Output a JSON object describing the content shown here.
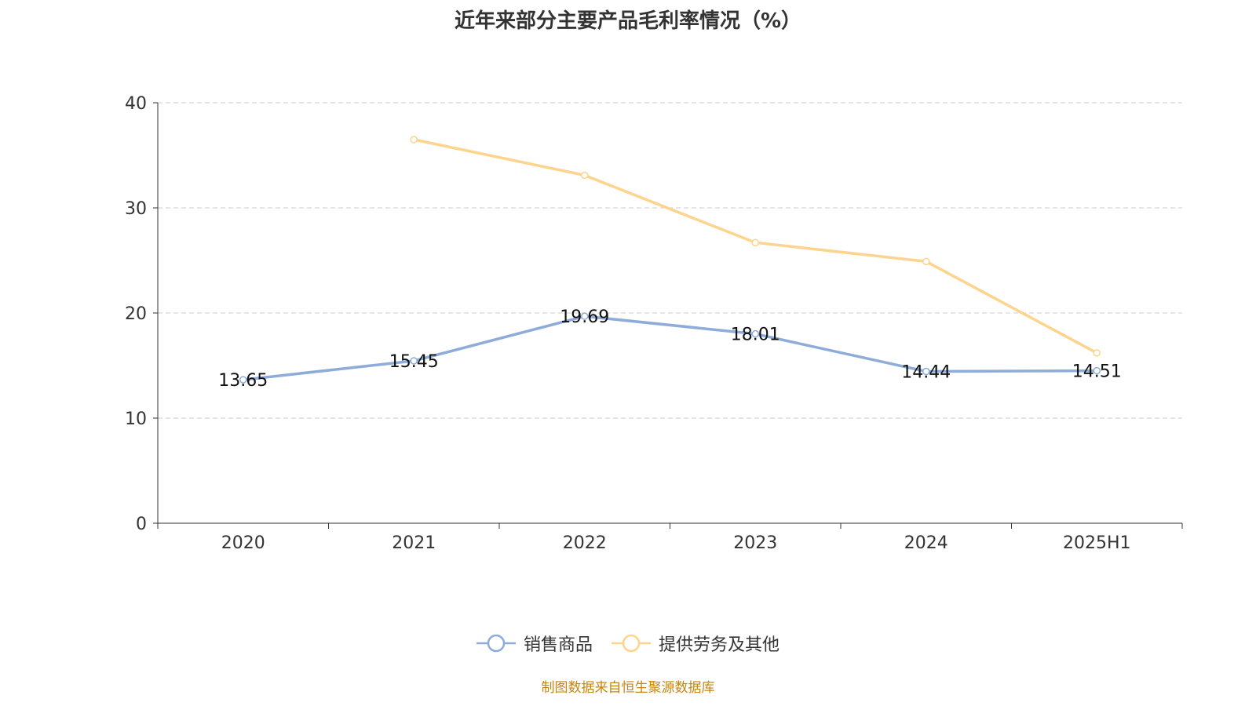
{
  "title": "近年来部分主要产品毛利率情况（%）",
  "source": "制图数据来自恒生聚源数据库",
  "chart_data": {
    "type": "line",
    "title": "近年来部分主要产品毛利率情况（%）",
    "categories": [
      "2020",
      "2021",
      "2022",
      "2023",
      "2024",
      "2025H1"
    ],
    "ylim": [
      0,
      40
    ],
    "yticks": [
      0,
      10,
      20,
      30,
      40
    ],
    "grid": true,
    "legend_position": "bottom",
    "series": [
      {
        "name": "销售商品",
        "color": "#8eacd9",
        "values": [
          13.65,
          15.45,
          19.69,
          18.01,
          14.44,
          14.51
        ],
        "labels": true
      },
      {
        "name": "提供劳务及其他",
        "color": "#fdd48d",
        "values": [
          null,
          36.5,
          33.1,
          26.7,
          24.9,
          16.2
        ],
        "labels": false
      }
    ]
  }
}
